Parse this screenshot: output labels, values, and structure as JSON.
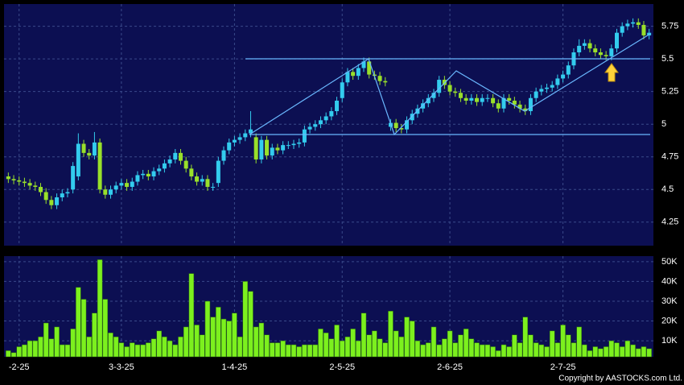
{
  "chart_data": {
    "type": "candlestick",
    "categories": [
      null,
      null,
      "-2-25",
      null,
      null,
      null,
      null,
      null,
      null,
      null,
      null,
      null,
      null,
      null,
      null,
      null,
      null,
      null,
      null,
      null,
      null,
      "3-3-25",
      null,
      null,
      null,
      null,
      null,
      null,
      null,
      null,
      null,
      null,
      null,
      null,
      null,
      null,
      null,
      null,
      null,
      null,
      null,
      null,
      "1-4-25",
      null,
      null,
      null,
      null,
      null,
      null,
      null,
      null,
      null,
      null,
      null,
      null,
      null,
      null,
      null,
      null,
      null,
      null,
      null,
      "2-5-25",
      null,
      null,
      null,
      null,
      null,
      null,
      null,
      null,
      null,
      null,
      null,
      null,
      null,
      null,
      null,
      null,
      null,
      null,
      null,
      "2-6-25",
      null,
      null,
      null,
      null,
      null,
      null,
      null,
      null,
      null,
      null,
      null,
      null,
      null,
      null,
      null,
      null,
      null,
      null,
      null,
      null,
      "2-7-25",
      null,
      null,
      null,
      null,
      null,
      null,
      null,
      null,
      null,
      null,
      null,
      null,
      null,
      null,
      null,
      null
    ],
    "open": [
      4.6,
      4.58,
      4.57,
      4.56,
      4.55,
      4.53,
      4.52,
      4.48,
      4.42,
      4.38,
      4.44,
      4.47,
      4.5,
      4.6,
      4.85,
      4.78,
      4.76,
      4.86,
      4.5,
      4.46,
      4.5,
      4.53,
      4.55,
      4.52,
      4.56,
      4.61,
      4.62,
      4.6,
      4.64,
      4.66,
      4.7,
      4.73,
      4.78,
      4.72,
      4.66,
      4.6,
      4.56,
      4.58,
      4.52,
      4.55,
      4.72,
      4.8,
      4.86,
      4.88,
      4.9,
      4.93,
      4.9,
      4.73,
      4.88,
      4.76,
      4.82,
      4.8,
      4.84,
      4.84,
      4.85,
      4.86,
      4.96,
      4.98,
      5.0,
      5.03,
      5.06,
      5.1,
      5.2,
      5.32,
      5.4,
      5.37,
      5.43,
      5.48,
      5.38,
      5.37,
      5.33,
      4.98,
      5.01,
      4.97,
      4.96,
      5.03,
      5.08,
      5.12,
      5.16,
      5.2,
      5.24,
      5.34,
      5.3,
      5.25,
      5.24,
      5.2,
      5.18,
      5.2,
      5.17,
      5.2,
      5.2,
      5.16,
      5.12,
      5.2,
      5.18,
      5.15,
      5.12,
      5.1,
      5.2,
      5.25,
      5.27,
      5.28,
      5.3,
      5.35,
      5.38,
      5.45,
      5.55,
      5.6,
      5.62,
      5.58,
      5.55,
      5.53,
      5.52,
      5.58,
      5.7,
      5.75,
      5.77,
      5.78,
      5.76,
      5.68
    ],
    "high": [
      4.63,
      4.61,
      4.6,
      4.59,
      4.58,
      4.56,
      4.55,
      4.51,
      4.45,
      4.47,
      4.5,
      4.51,
      4.71,
      4.93,
      4.88,
      4.81,
      4.94,
      4.89,
      4.53,
      4.53,
      4.56,
      4.58,
      4.58,
      4.59,
      4.64,
      4.65,
      4.65,
      4.67,
      4.69,
      4.73,
      4.76,
      4.81,
      4.81,
      4.75,
      4.69,
      4.63,
      4.61,
      4.61,
      4.55,
      4.75,
      4.83,
      4.89,
      4.91,
      4.93,
      4.96,
      5.1,
      4.93,
      4.91,
      4.91,
      4.85,
      4.85,
      4.87,
      4.87,
      4.88,
      4.89,
      4.99,
      5.01,
      5.03,
      5.06,
      5.09,
      5.13,
      5.21,
      5.35,
      5.43,
      5.43,
      5.46,
      5.51,
      5.51,
      5.41,
      5.4,
      5.36,
      5.04,
      5.04,
      5.0,
      5.06,
      5.11,
      5.15,
      5.19,
      5.23,
      5.27,
      5.37,
      5.37,
      5.33,
      5.28,
      5.27,
      5.23,
      5.23,
      5.23,
      5.23,
      5.23,
      5.23,
      5.19,
      5.23,
      5.23,
      5.21,
      5.18,
      5.15,
      5.23,
      5.28,
      5.3,
      5.31,
      5.33,
      5.38,
      5.41,
      5.48,
      5.58,
      5.65,
      5.65,
      5.65,
      5.61,
      5.58,
      5.56,
      5.61,
      5.73,
      5.78,
      5.8,
      5.81,
      5.81,
      5.79,
      5.73
    ],
    "low": [
      4.55,
      4.54,
      4.53,
      4.52,
      4.5,
      4.49,
      4.45,
      4.39,
      4.35,
      4.35,
      4.41,
      4.44,
      4.47,
      4.57,
      4.75,
      4.73,
      4.73,
      4.47,
      4.43,
      4.43,
      4.47,
      4.5,
      4.49,
      4.49,
      4.53,
      4.58,
      4.57,
      4.57,
      4.61,
      4.63,
      4.67,
      4.7,
      4.69,
      4.63,
      4.57,
      4.53,
      4.53,
      4.49,
      4.49,
      4.52,
      4.69,
      4.77,
      4.83,
      4.85,
      4.87,
      4.9,
      4.7,
      4.7,
      4.73,
      4.73,
      4.77,
      4.77,
      4.81,
      4.81,
      4.82,
      4.83,
      4.93,
      4.95,
      4.97,
      5.0,
      5.03,
      5.07,
      5.17,
      5.29,
      5.34,
      5.34,
      5.4,
      5.35,
      5.34,
      5.3,
      5.29,
      4.95,
      4.94,
      4.93,
      4.93,
      5.0,
      5.05,
      5.09,
      5.13,
      5.17,
      5.21,
      5.27,
      5.22,
      5.21,
      5.17,
      5.15,
      5.15,
      5.14,
      5.14,
      5.17,
      5.13,
      5.09,
      5.09,
      5.15,
      5.12,
      5.09,
      5.07,
      5.07,
      5.17,
      5.22,
      5.24,
      5.25,
      5.27,
      5.32,
      5.35,
      5.42,
      5.52,
      5.57,
      5.55,
      5.52,
      5.5,
      5.49,
      5.49,
      5.55,
      5.67,
      5.72,
      5.74,
      5.73,
      5.65,
      5.65
    ],
    "close": [
      4.58,
      4.57,
      4.56,
      4.55,
      4.53,
      4.52,
      4.48,
      4.42,
      4.38,
      4.44,
      4.47,
      4.48,
      4.68,
      4.85,
      4.78,
      4.76,
      4.86,
      4.5,
      4.46,
      4.5,
      4.53,
      4.55,
      4.52,
      4.56,
      4.61,
      4.62,
      4.6,
      4.64,
      4.66,
      4.7,
      4.73,
      4.78,
      4.72,
      4.66,
      4.6,
      4.56,
      4.58,
      4.52,
      4.52,
      4.72,
      4.8,
      4.86,
      4.88,
      4.9,
      4.93,
      4.96,
      4.73,
      4.88,
      4.76,
      4.82,
      4.8,
      4.84,
      4.84,
      4.85,
      4.86,
      4.96,
      4.98,
      5.0,
      5.03,
      5.06,
      5.1,
      5.18,
      5.32,
      5.4,
      5.37,
      5.43,
      5.48,
      5.38,
      5.37,
      5.33,
      5.32,
      5.01,
      4.97,
      4.96,
      5.03,
      5.08,
      5.12,
      5.16,
      5.2,
      5.24,
      5.34,
      5.3,
      5.25,
      5.24,
      5.2,
      5.18,
      5.2,
      5.17,
      5.2,
      5.2,
      5.16,
      5.12,
      5.2,
      5.18,
      5.15,
      5.12,
      5.1,
      5.2,
      5.25,
      5.27,
      5.28,
      5.3,
      5.35,
      5.38,
      5.45,
      5.55,
      5.6,
      5.62,
      5.58,
      5.55,
      5.53,
      5.52,
      5.58,
      5.7,
      5.75,
      5.77,
      5.78,
      5.76,
      5.68,
      5.7
    ],
    "up_color": "#33ccee",
    "down_color": "#99e02a",
    "ylim": [
      4.07,
      5.92
    ],
    "yticks": [
      4.25,
      4.5,
      4.75,
      5,
      5.25,
      5.5,
      5.75
    ],
    "grid": true,
    "volume": {
      "type": "bar",
      "color": "#7cf01e",
      "values": [
        5000,
        4000,
        7000,
        8000,
        10000,
        10000,
        12000,
        19000,
        11000,
        17000,
        8000,
        8000,
        16000,
        37000,
        31000,
        12000,
        24000,
        51000,
        31000,
        14000,
        12000,
        9000,
        7000,
        9000,
        8000,
        8000,
        9000,
        11000,
        15000,
        12000,
        10000,
        8000,
        12000,
        17000,
        44000,
        18000,
        13000,
        30000,
        22000,
        27000,
        21000,
        20000,
        24000,
        12000,
        40000,
        35000,
        17000,
        19000,
        13000,
        9000,
        9000,
        10000,
        8000,
        8000,
        7000,
        8000,
        8000,
        8000,
        16000,
        14000,
        11000,
        18000,
        10000,
        12000,
        16000,
        10000,
        24000,
        13000,
        15000,
        11000,
        9000,
        25000,
        15000,
        12000,
        22000,
        20000,
        10000,
        8000,
        9000,
        17000,
        8000,
        11000,
        15000,
        9000,
        13000,
        16000,
        11000,
        9000,
        8000,
        8000,
        7000,
        5000,
        8000,
        7000,
        13000,
        9000,
        22000,
        13000,
        9000,
        8000,
        7000,
        15000,
        9000,
        18000,
        13000,
        9000,
        17000,
        8000,
        5000,
        7000,
        6000,
        7000,
        10000,
        9000,
        7000,
        10000,
        8000,
        6000,
        7000,
        6000
      ],
      "ylim": [
        1900,
        52800
      ],
      "yticks": [
        {
          "value": 10000,
          "label": "10K"
        },
        {
          "value": 20000,
          "label": "20K"
        },
        {
          "value": 30000,
          "label": "30K"
        },
        {
          "value": 40000,
          "label": "40K"
        },
        {
          "value": 50000,
          "label": "50K"
        }
      ]
    },
    "copyright": "Copyright by AASTOCKS.com Ltd."
  }
}
